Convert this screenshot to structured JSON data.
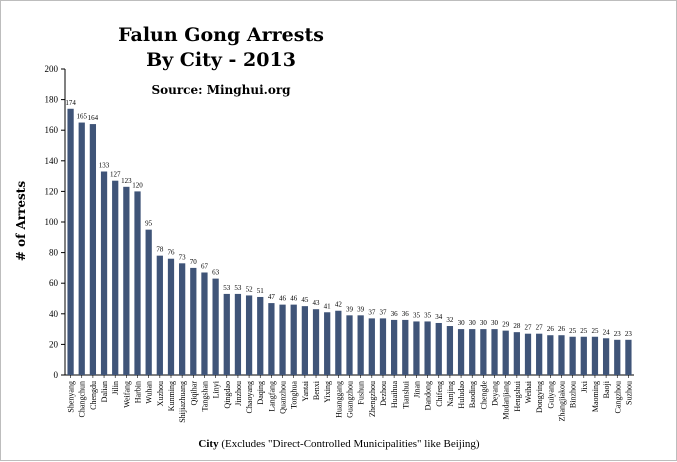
{
  "chart_data": {
    "type": "bar",
    "title_line1": "Falun Gong Arrests",
    "title_line2": "By City - 2013",
    "source": "Source: Minghui.org",
    "ylabel": "# of Arrests",
    "xlabel_bold": "City",
    "xlabel_rest": " (Excludes \"Direct-Controlled Municipalities\" like Beijing)",
    "ylim": [
      0,
      200
    ],
    "ytick_step": 20,
    "bar_color": "#3f5478",
    "legend": "none",
    "grid": false,
    "categories": [
      "Shenyang",
      "Changchun",
      "Chengdu",
      "Dalian",
      "Jilin",
      "Weifang",
      "Harbin",
      "Wuhan",
      "Xuzhou",
      "Kunming",
      "Shijiazhuang",
      "Qiqihar",
      "Tangshan",
      "Linyi",
      "Qingdao",
      "Jinzhou",
      "Chaoyang",
      "Daqing",
      "Langfang",
      "Quanzhou",
      "Tonghua",
      "Yantai",
      "Benxi",
      "Yixing",
      "Huanggang",
      "Guangzhou",
      "Fushun",
      "Zhengzhou",
      "Dezhou",
      "Huaihua",
      "Tianshui",
      "Jinan",
      "Dandong",
      "Chifeng",
      "Nanjing",
      "Huludao",
      "Baoding",
      "Chengde",
      "Deyang",
      "Mudanjiang",
      "Hengshui",
      "Weihai",
      "Dongying",
      "Guiyang",
      "Zhangjiakou",
      "Binzhou",
      "Jixi",
      "Maoming",
      "Baoji",
      "Cangzhou",
      "Suzhou"
    ],
    "values": [
      174,
      165,
      164,
      133,
      127,
      123,
      120,
      95,
      78,
      76,
      73,
      70,
      67,
      63,
      53,
      53,
      52,
      51,
      47,
      46,
      46,
      45,
      43,
      41,
      42,
      39,
      39,
      37,
      37,
      36,
      36,
      35,
      35,
      34,
      32,
      30,
      30,
      30,
      30,
      29,
      28,
      27,
      27,
      26,
      26,
      25,
      25,
      25,
      24,
      23,
      23
    ]
  }
}
